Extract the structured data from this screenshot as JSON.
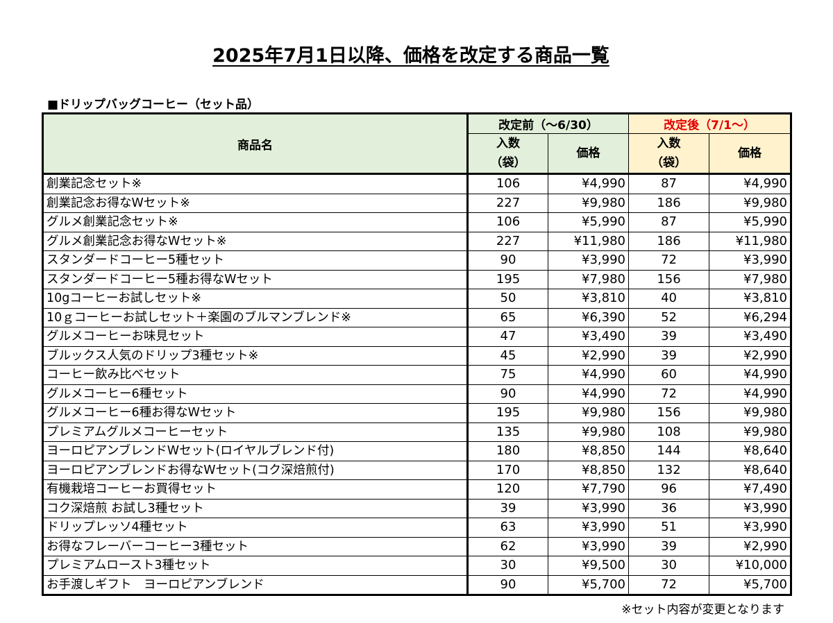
{
  "title": "2025年7月1日以降、価格を改定する商品一覧",
  "section_label": "■ドリップバッグコーヒー（セット品）",
  "table": {
    "header_name": "商品名",
    "header_before": "改定前（～6/30）",
    "header_after": "改定後（7/1～）",
    "header_qty_line1": "入数",
    "header_qty_line2": "（袋）",
    "header_price": "価格",
    "rows": [
      {
        "name": "創業記念セット※",
        "qty_before": "106",
        "price_before": "¥4,990",
        "qty_after": "87",
        "price_after": "¥4,990"
      },
      {
        "name": "創業記念お得なWセット※",
        "qty_before": "227",
        "price_before": "¥9,980",
        "qty_after": "186",
        "price_after": "¥9,980"
      },
      {
        "name": "グルメ創業記念セット※",
        "qty_before": "106",
        "price_before": "¥5,990",
        "qty_after": "87",
        "price_after": "¥5,990"
      },
      {
        "name": "グルメ創業記念お得なWセット※",
        "qty_before": "227",
        "price_before": "¥11,980",
        "qty_after": "186",
        "price_after": "¥11,980"
      },
      {
        "name": "スタンダードコーヒー5種セット",
        "qty_before": "90",
        "price_before": "¥3,990",
        "qty_after": "72",
        "price_after": "¥3,990"
      },
      {
        "name": "スタンダードコーヒー5種お得なWセット",
        "qty_before": "195",
        "price_before": "¥7,980",
        "qty_after": "156",
        "price_after": "¥7,980"
      },
      {
        "name": "10gコーヒーお試しセット※",
        "qty_before": "50",
        "price_before": "¥3,810",
        "qty_after": "40",
        "price_after": "¥3,810"
      },
      {
        "name": "10ｇコーヒーお試しセット＋楽園のブルマンブレンド※",
        "qty_before": "65",
        "price_before": "¥6,390",
        "qty_after": "52",
        "price_after": "¥6,294"
      },
      {
        "name": "グルメコーヒーお味見セット",
        "qty_before": "47",
        "price_before": "¥3,490",
        "qty_after": "39",
        "price_after": "¥3,490"
      },
      {
        "name": "ブルックス人気のドリップ3種セット※",
        "qty_before": "45",
        "price_before": "¥2,990",
        "qty_after": "39",
        "price_after": "¥2,990"
      },
      {
        "name": "コーヒー飲み比べセット",
        "qty_before": "75",
        "price_before": "¥4,990",
        "qty_after": "60",
        "price_after": "¥4,990"
      },
      {
        "name": "グルメコーヒー6種セット",
        "qty_before": "90",
        "price_before": "¥4,990",
        "qty_after": "72",
        "price_after": "¥4,990"
      },
      {
        "name": "グルメコーヒー6種お得なWセット",
        "qty_before": "195",
        "price_before": "¥9,980",
        "qty_after": "156",
        "price_after": "¥9,980"
      },
      {
        "name": "プレミアムグルメコーヒーセット",
        "qty_before": "135",
        "price_before": "¥9,980",
        "qty_after": "108",
        "price_after": "¥9,980"
      },
      {
        "name": "ヨーロピアンブレンドWセット(ロイヤルブレンド付)",
        "qty_before": "180",
        "price_before": "¥8,850",
        "qty_after": "144",
        "price_after": "¥8,640"
      },
      {
        "name": "ヨーロピアンブレンドお得なWセット(コク深焙煎付)",
        "qty_before": "170",
        "price_before": "¥8,850",
        "qty_after": "132",
        "price_after": "¥8,640"
      },
      {
        "name": "有機栽培コーヒーお買得セット",
        "qty_before": "120",
        "price_before": "¥7,790",
        "qty_after": "96",
        "price_after": "¥7,490"
      },
      {
        "name": "コク深焙煎 お試し3種セット",
        "qty_before": "39",
        "price_before": "¥3,990",
        "qty_after": "36",
        "price_after": "¥3,990"
      },
      {
        "name": "ドリップレッソ4種セット",
        "qty_before": "63",
        "price_before": "¥3,990",
        "qty_after": "51",
        "price_after": "¥3,990"
      },
      {
        "name": "お得なフレーバーコーヒー3種セット",
        "qty_before": "62",
        "price_before": "¥3,990",
        "qty_after": "39",
        "price_after": "¥2,990"
      },
      {
        "name": "プレミアムロースト3種セット",
        "qty_before": "30",
        "price_before": "¥9,500",
        "qty_after": "30",
        "price_after": "¥10,000"
      },
      {
        "name": "お手渡しギフト　ヨーロピアンブレンド",
        "qty_before": "90",
        "price_before": "¥5,700",
        "qty_after": "72",
        "price_after": "¥5,700"
      }
    ]
  },
  "footnote": "※セット内容が変更となります",
  "colors": {
    "header_before_bg": "#e2efda",
    "header_after_bg": "#fff2cc",
    "header_after_text": "#e00000"
  }
}
